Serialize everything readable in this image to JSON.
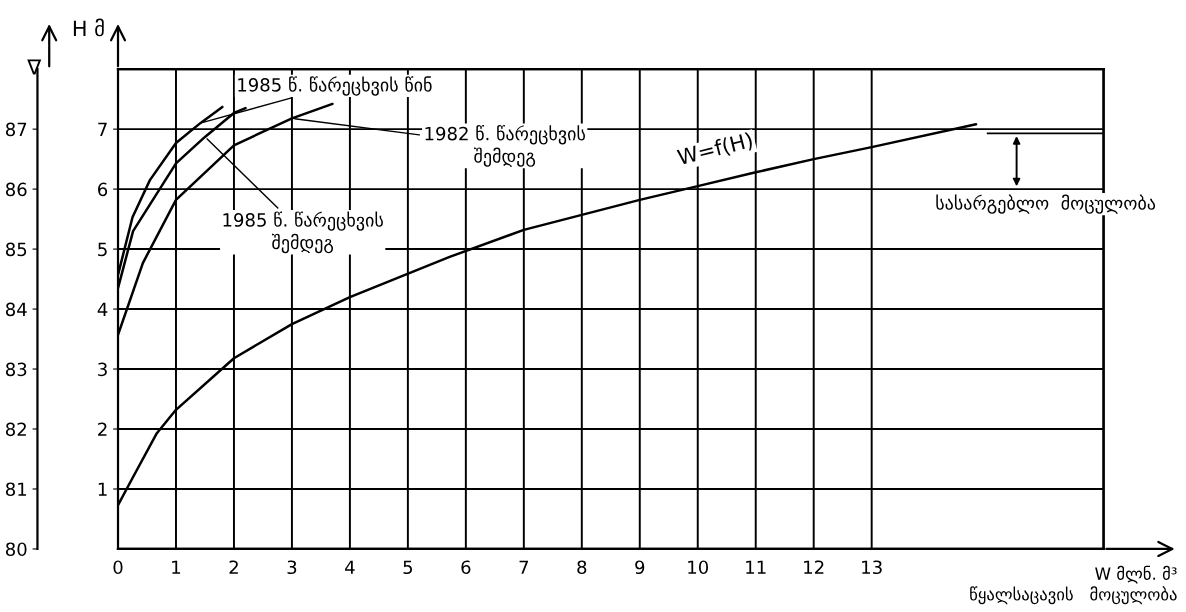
{
  "chart_data": {
    "type": "line",
    "xlabel": "W მლნ. მ³\nწყალსაცავის   მოცულობა",
    "ylabel": "∇",
    "y2label": "H მ",
    "xlim": [
      0,
      17
    ],
    "xticks": [
      0,
      1,
      2,
      3,
      4,
      5,
      6,
      7,
      8,
      9,
      10,
      11,
      12,
      13
    ],
    "ylim": [
      80,
      88
    ],
    "yticks": [
      80,
      81,
      82,
      83,
      84,
      85,
      86,
      87
    ],
    "y2lim": [
      0,
      8
    ],
    "y2ticks": [
      1,
      2,
      3,
      4,
      5,
      6,
      7
    ],
    "grid": true,
    "marker": "none",
    "line_style": "solid",
    "series": [
      {
        "name": "1985 წ. წარეცხვის წინ",
        "color": "#000000",
        "axis": "y2",
        "x": [
          0,
          0.25,
          0.55,
          1.0,
          1.42,
          1.8
        ],
        "values": [
          4.57,
          5.53,
          6.15,
          6.77,
          7.1,
          7.37
        ]
      },
      {
        "name": "1985 წ. წარეცხვის შემდეგ",
        "color": "#000000",
        "axis": "y2",
        "x": [
          0,
          0.26,
          1.0,
          1.5,
          2.0,
          2.2
        ],
        "values": [
          4.35,
          5.3,
          6.43,
          6.87,
          7.27,
          7.35
        ]
      },
      {
        "name": "1982 წ. წარეცხვის შემდეგ",
        "color": "#000000",
        "axis": "y2",
        "x": [
          0,
          0.43,
          1.0,
          2.0,
          3.0,
          3.7
        ],
        "values": [
          3.57,
          4.77,
          5.82,
          6.73,
          7.18,
          7.42
        ]
      },
      {
        "name": "W=f(H)",
        "color": "#000000",
        "axis": "y2",
        "x": [
          0,
          0.26,
          0.67,
          1.0,
          2.0,
          3.0,
          4.0,
          5.72,
          7.0,
          8.0,
          9.0,
          10.0,
          11.0,
          12.0,
          13.0,
          14.8
        ],
        "values": [
          0.73,
          1.2,
          1.93,
          2.32,
          3.18,
          3.75,
          4.2,
          4.87,
          5.32,
          5.57,
          5.82,
          6.05,
          6.28,
          6.5,
          6.7,
          7.08
        ]
      }
    ],
    "annotations": [
      "სასარგებლო  მოცულობა"
    ]
  }
}
